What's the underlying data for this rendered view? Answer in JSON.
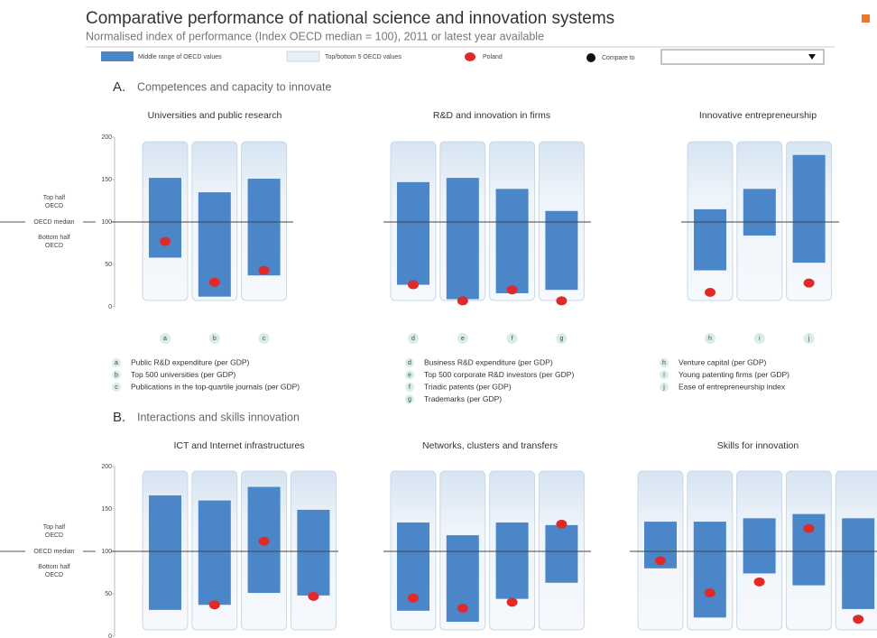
{
  "header": {
    "title": "Comparative performance of national science and innovation systems",
    "subtitle": "Normalised index of performance (Index OECD median = 100), 2011 or latest year available"
  },
  "legend": {
    "middle": {
      "label": "Middle range of OECD values",
      "color": "#4a86c8"
    },
    "top_bottom": {
      "label": "Top/bottom 5 OECD values",
      "color": "#e8f0f8"
    },
    "poland": {
      "label": "Poland",
      "color": "#e02a2a"
    },
    "compare": {
      "label": "Compare to"
    }
  },
  "axis_labels": {
    "top_half": [
      "Top half",
      "OECD"
    ],
    "median": "OECD median",
    "bottom_half": [
      "Bottom half",
      "OECD"
    ]
  },
  "sections": [
    {
      "letter": "A.",
      "title": "Competences and capacity to innovate"
    },
    {
      "letter": "B.",
      "title": "Interactions and skills innovation"
    }
  ],
  "chart_data": [
    {
      "type": "range",
      "title": "Universities and public research",
      "categories": [
        "a",
        "b",
        "c"
      ],
      "lower": [
        58,
        12,
        37
      ],
      "upper": [
        152,
        135,
        151
      ],
      "poland": [
        77,
        29,
        43
      ],
      "median": 100,
      "ylim": [
        0,
        200
      ],
      "yticks": [
        0,
        50,
        100,
        150,
        200
      ],
      "notes": [
        {
          "key": "a",
          "label": "Public R&D expenditure (per GDP)"
        },
        {
          "key": "b",
          "label": "Top 500 universities (per GDP)"
        },
        {
          "key": "c",
          "label": "Publications in the top-quartile journals (per GDP)"
        }
      ]
    },
    {
      "type": "range",
      "title": "R&D and innovation in firms",
      "categories": [
        "d",
        "e",
        "f",
        "g"
      ],
      "lower": [
        26,
        9,
        16,
        20
      ],
      "upper": [
        147,
        152,
        139,
        113
      ],
      "poland": [
        26,
        7,
        20,
        7
      ],
      "median": 100,
      "ylim": [
        0,
        200
      ],
      "yticks": [
        0,
        50,
        100,
        150,
        200
      ],
      "notes": [
        {
          "key": "d",
          "label": "Business R&D expenditure (per GDP)"
        },
        {
          "key": "e",
          "label": "Top 500 corporate R&D investors (per GDP)"
        },
        {
          "key": "f",
          "label": "Triadic patents (per GDP)"
        },
        {
          "key": "g",
          "label": "Trademarks (per GDP)"
        }
      ]
    },
    {
      "type": "range",
      "title": "Innovative entrepreneurship",
      "categories": [
        "h",
        "i",
        "j"
      ],
      "lower": [
        43,
        84,
        52
      ],
      "upper": [
        115,
        139,
        179
      ],
      "poland": [
        17,
        null,
        28
      ],
      "median": 100,
      "ylim": [
        0,
        200
      ],
      "yticks": [
        0,
        50,
        100,
        150,
        200
      ],
      "notes": [
        {
          "key": "h",
          "label": "Venture capital (per GDP)"
        },
        {
          "key": "i",
          "label": "Young patenting firms (per GDP)"
        },
        {
          "key": "j",
          "label": "Ease of entrepreneurship index"
        }
      ]
    },
    {
      "type": "range",
      "title": "ICT and Internet infrastructures",
      "lower": [
        31,
        37,
        51,
        48
      ],
      "upper": [
        166,
        160,
        176,
        149
      ],
      "poland": [
        null,
        37,
        112,
        47
      ],
      "median": 100,
      "ylim": [
        0,
        200
      ],
      "yticks": [
        0,
        50,
        100,
        150,
        200
      ]
    },
    {
      "type": "range",
      "title": "Networks, clusters and transfers",
      "lower": [
        30,
        17,
        44,
        63
      ],
      "upper": [
        134,
        119,
        134,
        131
      ],
      "poland": [
        45,
        33,
        40,
        132
      ],
      "median": 100,
      "ylim": [
        0,
        200
      ],
      "yticks": [
        0,
        50,
        100,
        150,
        200
      ]
    },
    {
      "type": "range",
      "title": "Skills for innovation",
      "lower": [
        80,
        22,
        74,
        60,
        32
      ],
      "upper": [
        135,
        135,
        139,
        144,
        139
      ],
      "poland": [
        89,
        51,
        64,
        127,
        20
      ],
      "median": 100,
      "ylim": [
        0,
        200
      ],
      "yticks": [
        0,
        50,
        100,
        150,
        200
      ]
    }
  ]
}
